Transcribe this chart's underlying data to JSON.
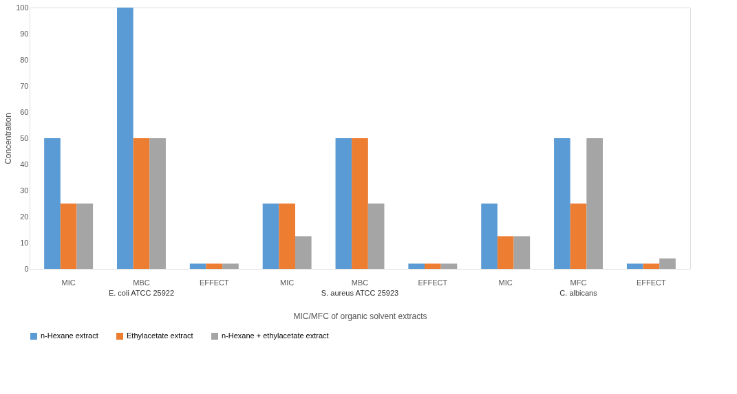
{
  "chart_data": {
    "type": "bar",
    "xlabel": "MIC/MFC of organic solvent extracts",
    "ylabel": "Concentration",
    "categories": [
      "MIC",
      "MBC",
      "EFFECT",
      "MIC",
      "MBC",
      "EFFECT",
      "MIC",
      "MFC",
      "EFFECT"
    ],
    "series": [
      {
        "name": "n-Hexane extract",
        "color": "#5b9bd5",
        "values": [
          50,
          100,
          2,
          25,
          50,
          2,
          25,
          50,
          2
        ]
      },
      {
        "name": "Ethylacetate extract",
        "color": "#ed7d31",
        "values": [
          25,
          50,
          2,
          25,
          50,
          2,
          12.5,
          25,
          2
        ]
      },
      {
        "name": "n-Hexane + ethylacetate extract",
        "color": "#a5a5a5",
        "values": [
          25,
          50,
          2,
          12.5,
          25,
          2,
          12.5,
          50,
          4
        ]
      }
    ],
    "annotations": [
      "E. coli ATCC 25922",
      "S. aureus ATCC 25923",
      "C. albicans"
    ],
    "ylim": [
      0,
      100
    ],
    "yticks": [
      0,
      10,
      20,
      30,
      40,
      50,
      60,
      70,
      80,
      90,
      100
    ],
    "grid": false,
    "legend": "bottom"
  }
}
